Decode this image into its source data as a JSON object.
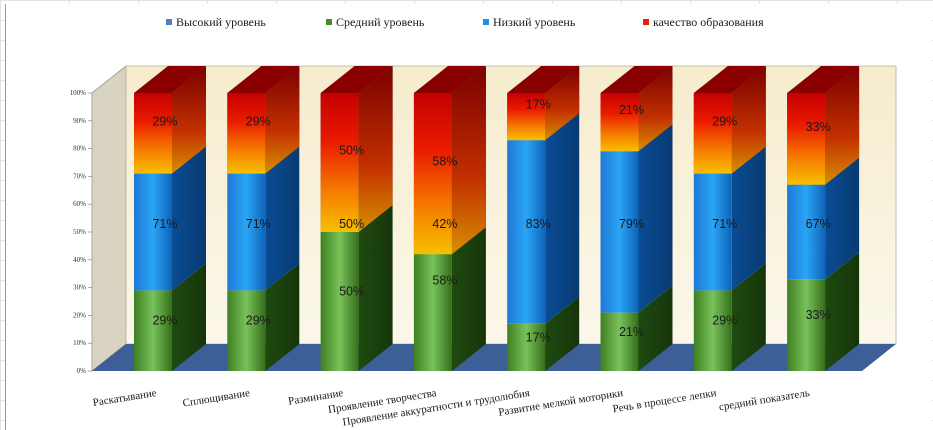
{
  "chart_data": {
    "type": "bar",
    "stacked": "percent",
    "three_d": true,
    "title": "",
    "xlabel": "",
    "ylabel": "",
    "ylim": [
      0,
      100
    ],
    "y_ticks": [
      "0%",
      "10%",
      "20%",
      "30%",
      "40%",
      "50%",
      "60%",
      "70%",
      "80%",
      "90%",
      "100%"
    ],
    "legend_position": "top",
    "categories": [
      "Раскатывание",
      "Сплющивание",
      "Разминание",
      "Проявление творчества",
      "Проявление аккуратности и трудолюбия",
      "Развитие мелкой моторики",
      "Речь в процессе лепки",
      "средний показатель"
    ],
    "series": [
      {
        "name": "Высокий уровень",
        "color": "#4f81bd",
        "values": [
          0,
          0,
          0,
          0,
          0,
          0,
          0,
          0
        ]
      },
      {
        "name": "Средний уровень",
        "color": "#4a8a2a",
        "values": [
          29,
          29,
          50,
          58,
          17,
          21,
          29,
          33
        ]
      },
      {
        "name": "Низкий уровень",
        "color": "#1d8fe0",
        "values": [
          71,
          71,
          50,
          42,
          83,
          79,
          71,
          67
        ]
      },
      {
        "name": "качество образования",
        "color": "#e02010",
        "values": [
          29,
          29,
          50,
          58,
          17,
          21,
          29,
          33
        ]
      }
    ],
    "data_labels": {
      "Средний уровень": [
        "29%",
        "29%",
        "50%",
        "58%",
        "17%",
        "21%",
        "29%",
        "33%"
      ],
      "Низкий уровень": [
        "71%",
        "71%",
        "50%",
        "42%",
        "83%",
        "79%",
        "71%",
        "67%"
      ],
      "качество образования": [
        "29%",
        "29%",
        "50%",
        "58%",
        "17%",
        "21%",
        "29%",
        "33%"
      ]
    },
    "colors": {
      "wall": "#f7f0dc",
      "floor": "#3c5f98",
      "text": "#1a1a1a"
    }
  }
}
